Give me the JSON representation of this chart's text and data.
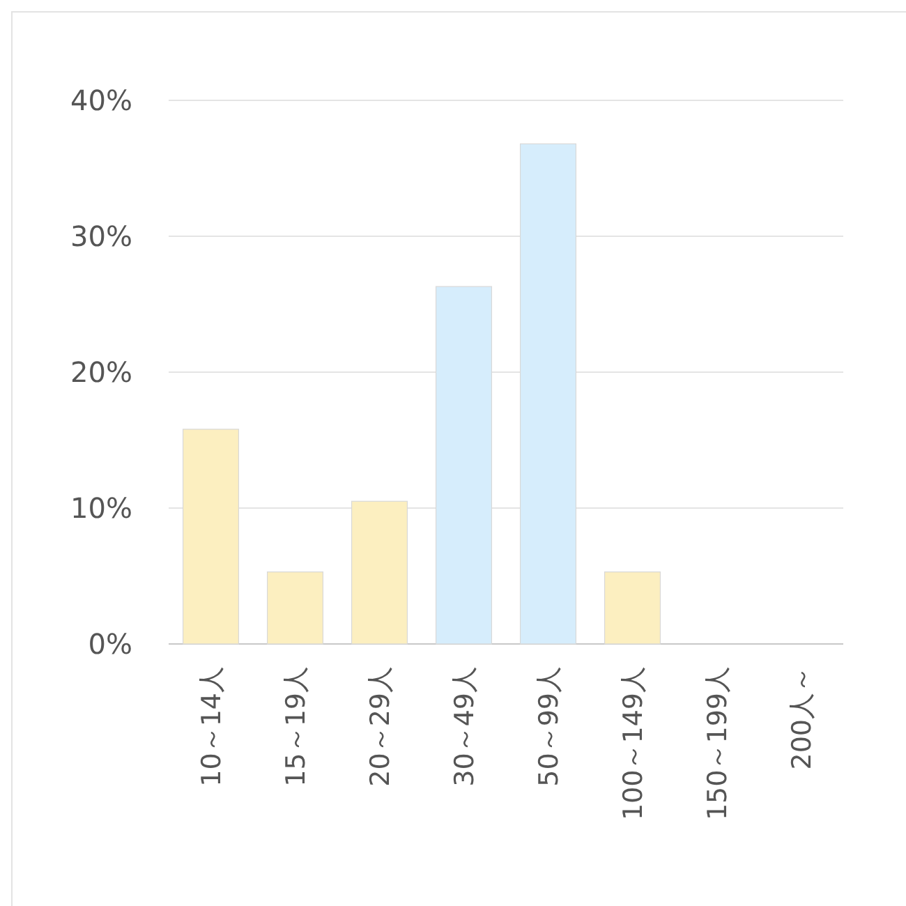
{
  "chart_data": {
    "type": "bar",
    "categories": [
      "10～14人",
      "15～19人",
      "20～29人",
      "30～49人",
      "50～99人",
      "100～149人",
      "150～199人",
      "200人～"
    ],
    "values": [
      15.8,
      5.3,
      10.5,
      26.3,
      36.8,
      5.3,
      0,
      0
    ],
    "colors": [
      "#fcefc0",
      "#fcefc0",
      "#fcefc0",
      "#d6edfc",
      "#d6edfc",
      "#fcefc0",
      "#fcefc0",
      "#fcefc0"
    ],
    "ylim": [
      0,
      40
    ],
    "yticks": [
      {
        "value": 0,
        "label": "0%"
      },
      {
        "value": 10,
        "label": "10%"
      },
      {
        "value": 20,
        "label": "20%"
      },
      {
        "value": 30,
        "label": "30%"
      },
      {
        "value": 40,
        "label": "40%"
      }
    ],
    "grid": "y"
  }
}
